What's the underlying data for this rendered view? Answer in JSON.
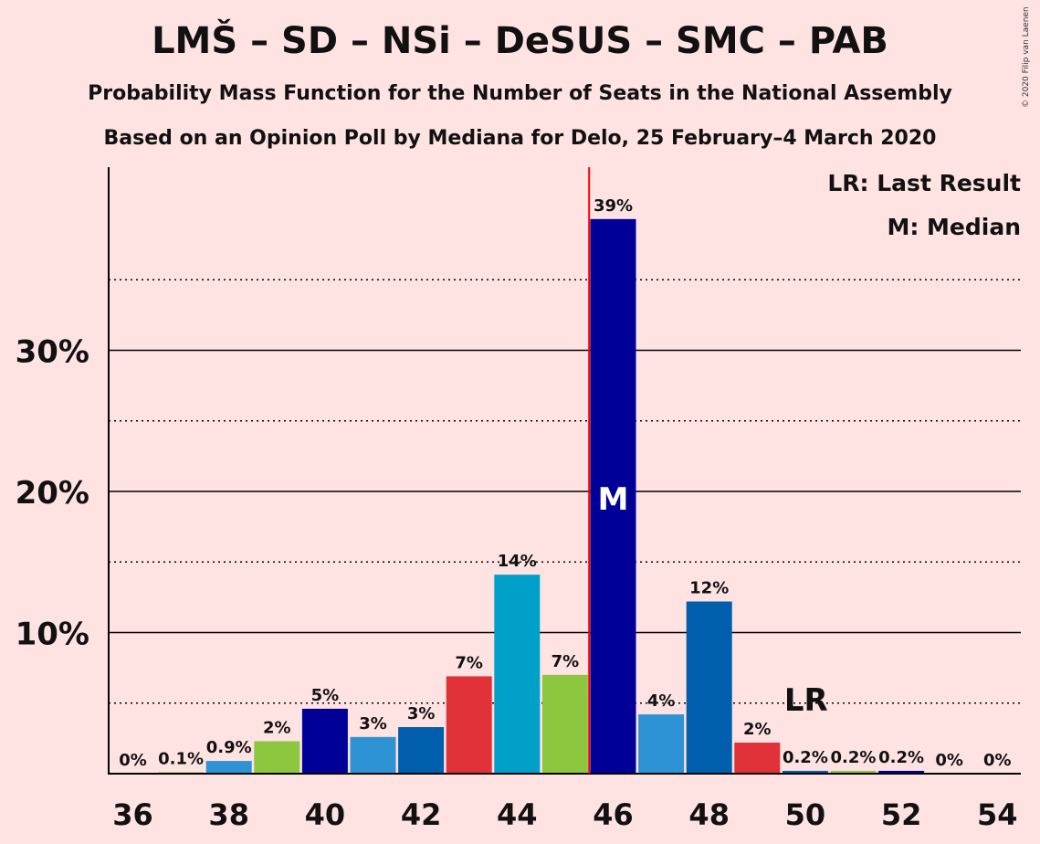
{
  "title": "LMŠ – SD – NSi – DeSUS – SMC – PAB",
  "subtitle_1": "Probability Mass Function for the Number of Seats in the National Assembly",
  "subtitle_2": "Based on an Opinion Poll by Mediana for Delo, 25 February–4 March 2020",
  "copyright": "© 2020 Filip van Laenen",
  "legend": {
    "last_result": "LR: Last Result",
    "median": "M: Median"
  },
  "markers": {
    "median_label": "M",
    "median_seat": 46,
    "last_result_label": "LR",
    "last_result_seat": 50
  },
  "colors": {
    "background": "#FFE3E3",
    "median_line": "#FF0000"
  },
  "chart_data": {
    "type": "bar",
    "xlabel": "",
    "ylabel": "",
    "x": [
      36,
      37,
      38,
      39,
      40,
      41,
      42,
      43,
      44,
      45,
      46,
      47,
      48,
      49,
      50,
      51,
      52,
      53,
      54
    ],
    "values": [
      0,
      0.1,
      0.9,
      2.3,
      4.6,
      2.6,
      3.3,
      6.9,
      14.1,
      7.0,
      39.3,
      4.2,
      12.2,
      2.2,
      0.2,
      0.2,
      0.2,
      0,
      0
    ],
    "data_labels": [
      "0%",
      "0.1%",
      "0.9%",
      "2%",
      "5%",
      "3%",
      "3%",
      "7%",
      "14%",
      "7%",
      "39%",
      "4%",
      "12%",
      "2%",
      "0.2%",
      "0.2%",
      "0.2%",
      "0%",
      "0%"
    ],
    "bar_colors": [
      "#2E93D4",
      "#8DC63F",
      "#2E93D4",
      "#8DC63F",
      "#000099",
      "#2E93D4",
      "#005EAC",
      "#E03238",
      "#00A0C8",
      "#8DC63F",
      "#000099",
      "#2E93D4",
      "#005EAC",
      "#E03238",
      "#005EAC",
      "#8DC63F",
      "#000099",
      "#2E93D4",
      "#005EAC"
    ],
    "x_ticks": [
      36,
      38,
      40,
      42,
      44,
      46,
      48,
      50,
      52,
      54
    ],
    "x_tick_labels": [
      "36",
      "38",
      "40",
      "42",
      "44",
      "46",
      "48",
      "50",
      "52",
      "54"
    ],
    "y_ticks": [
      10,
      20,
      30
    ],
    "y_tick_labels": [
      "10%",
      "20%",
      "30%"
    ],
    "y_minor_ticks": [
      5,
      15,
      25,
      35
    ],
    "ylim": [
      0,
      43
    ],
    "grid": true,
    "legend_position": "top-right"
  }
}
